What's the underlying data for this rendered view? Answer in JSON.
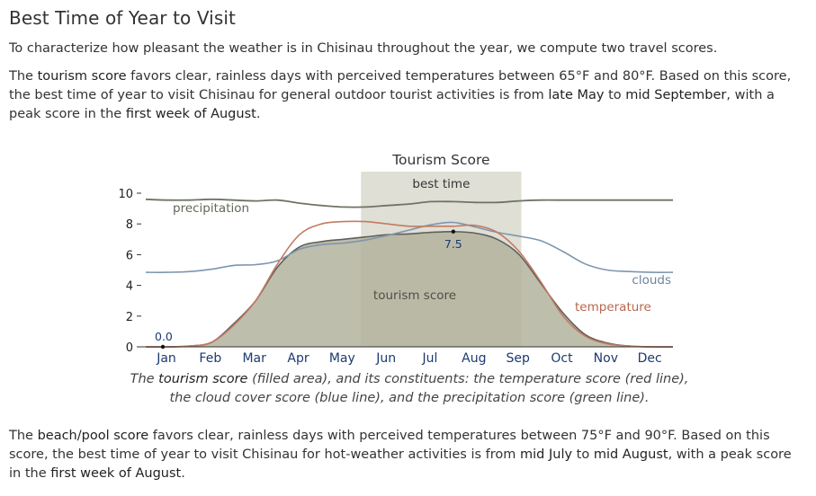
{
  "section": {
    "heading": "Best Time of Year to Visit",
    "intro": "To characterize how pleasant the weather is in Chisinau throughout the year, we compute two travel scores."
  },
  "tourism_paragraph": {
    "t1": "The ",
    "score_name": "tourism score",
    "t2": " favors clear, rainless days with perceived temperatures between 65°F and 80°F. Based on this score, the best time of year to visit Chisinau for general outdoor tourist activities is from ",
    "start": "late May",
    "t3": " to ",
    "end": "mid September",
    "t4": ", with a peak score in the ",
    "peak": "first week of August",
    "t5": "."
  },
  "beach_paragraph": {
    "t1": "The ",
    "score_name": "beach/pool score",
    "t2": " favors clear, rainless days with perceived temperatures between 75°F and 90°F. Based on this score, the best time of year to visit Chisinau for hot-weather activities is from ",
    "start": "mid July",
    "t3": " to ",
    "end": "mid August",
    "t4": ", with a peak score in the ",
    "peak": "first week of August",
    "t5": "."
  },
  "caption": {
    "t1": "The ",
    "score_name": "tourism score",
    "t2": " (filled area), and its constituents: the temperature score (red line), the cloud cover score (blue line), and the precipitation score (green line)."
  },
  "chart_data": {
    "type": "area",
    "title": "Tourism Score",
    "best_time_label": "best time",
    "best_time_range": [
      4.9,
      8.55
    ],
    "x": [
      0,
      0.5,
      1,
      1.5,
      2,
      2.5,
      3,
      3.5,
      4,
      4.5,
      5,
      5.5,
      6,
      6.5,
      7,
      7.5,
      8,
      8.5,
      9,
      9.5,
      10,
      10.5,
      11,
      11.5,
      12
    ],
    "x_tick_positions": [
      0,
      1,
      2,
      3,
      4,
      5,
      6,
      7,
      8,
      9,
      10,
      11
    ],
    "categories": [
      "Jan",
      "Feb",
      "Mar",
      "Apr",
      "May",
      "Jun",
      "Jul",
      "Aug",
      "Sep",
      "Oct",
      "Nov",
      "Dec"
    ],
    "y_ticks": [
      0,
      2,
      4,
      6,
      8,
      10
    ],
    "ylim": [
      0,
      10
    ],
    "colors": {
      "tourism_fill": "#b3b39d",
      "tourism_line": "#60605a",
      "temperature": "#c47a62",
      "clouds": "#7d96ad",
      "precipitation": "#6e7462",
      "best_time_band": "#d9d9cf",
      "axis": "#333333",
      "tick_label": "#1d3a70"
    },
    "series": [
      {
        "name": "tourism score",
        "values": [
          0.0,
          0.0,
          0.05,
          0.3,
          1.5,
          3.0,
          5.2,
          6.5,
          6.85,
          7.0,
          7.15,
          7.3,
          7.35,
          7.45,
          7.5,
          7.4,
          7.0,
          6.0,
          4.1,
          2.2,
          0.8,
          0.25,
          0.05,
          0.0,
          0.0
        ]
      },
      {
        "name": "temperature",
        "values": [
          0.0,
          0.0,
          0.05,
          0.3,
          1.4,
          3.0,
          5.4,
          7.3,
          8.0,
          8.15,
          8.15,
          8.0,
          7.85,
          7.85,
          7.85,
          7.9,
          7.45,
          6.2,
          4.2,
          2.0,
          0.7,
          0.2,
          0.05,
          0.0,
          0.0
        ]
      },
      {
        "name": "clouds",
        "values": [
          4.85,
          4.85,
          4.9,
          5.05,
          5.3,
          5.35,
          5.6,
          6.35,
          6.65,
          6.75,
          6.95,
          7.25,
          7.6,
          7.95,
          8.1,
          7.8,
          7.45,
          7.2,
          6.9,
          6.2,
          5.4,
          5.0,
          4.9,
          4.85,
          4.85
        ]
      },
      {
        "name": "precipitation",
        "values": [
          9.6,
          9.55,
          9.55,
          9.6,
          9.55,
          9.5,
          9.55,
          9.35,
          9.2,
          9.1,
          9.1,
          9.2,
          9.3,
          9.45,
          9.45,
          9.4,
          9.4,
          9.5,
          9.55,
          9.55,
          9.55,
          9.55,
          9.55,
          9.55,
          9.55
        ]
      }
    ],
    "annotations": {
      "start_value": "0.0",
      "peak_value": "7.5",
      "peak_x": 7.0,
      "precipitation_label": "precipitation",
      "tourism_label": "tourism score",
      "clouds_label": "clouds",
      "temperature_label": "temperature"
    }
  }
}
